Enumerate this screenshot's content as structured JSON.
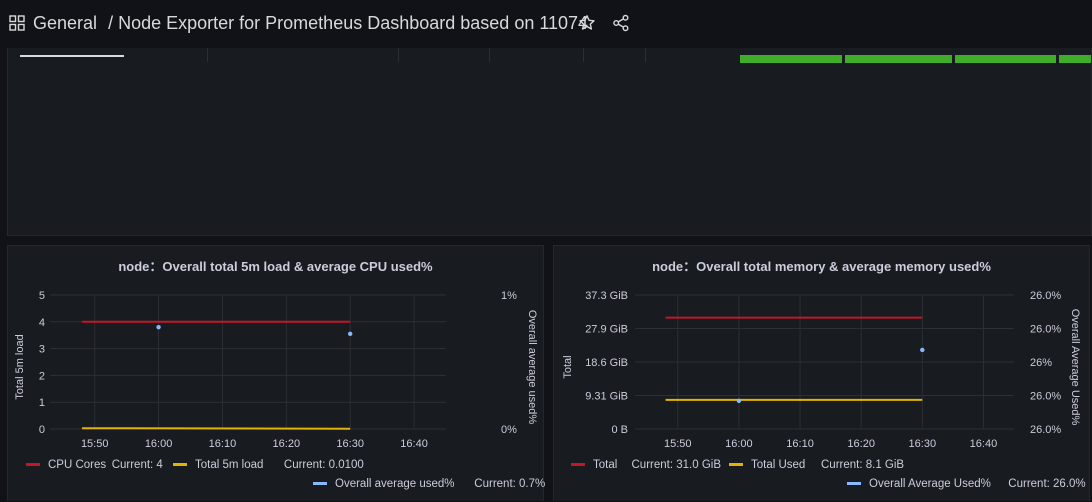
{
  "header": {
    "folder": "General",
    "separator": "/",
    "title": "Node Exporter for Prometheus Dashboard based on 11074",
    "icons": [
      "apps-grid-icon",
      "star-icon",
      "share-icon"
    ]
  },
  "colors": {
    "red": "#c4162a",
    "yellow": "#e0b400",
    "blue": "#8ab8ff",
    "green": "#3fac2a"
  },
  "panels": [
    {
      "title": "node：Overall total 5m load & average CPU used%",
      "left_axis_label": "Total 5m load",
      "right_axis_label": "Overall average used%",
      "left_ticks": [
        "5",
        "4",
        "3",
        "2",
        "1",
        "0"
      ],
      "right_ticks": [
        "1%",
        "0%"
      ],
      "x_ticks": [
        "15:50",
        "16:00",
        "16:10",
        "16:20",
        "16:30",
        "16:40"
      ],
      "legend": [
        {
          "name": "CPU Cores",
          "current_label": "Current: 4",
          "color": "#c4162a"
        },
        {
          "name": "Total 5m load",
          "current_label": "Current: 0.0100",
          "color": "#e0b400"
        },
        {
          "name": "Overall average used%",
          "current_label": "Current: 0.7%",
          "color": "#8ab8ff"
        }
      ]
    },
    {
      "title": "node：Overall total memory & average memory used%",
      "left_axis_label": "Total",
      "right_axis_label": "Overall Average Used%",
      "left_ticks": [
        "37.3 GiB",
        "27.9 GiB",
        "18.6 GiB",
        "9.31 GiB",
        "0 B"
      ],
      "right_ticks": [
        "26.0%",
        "26.0%",
        "26%",
        "26.0%",
        "26.0%"
      ],
      "x_ticks": [
        "15:50",
        "16:00",
        "16:10",
        "16:20",
        "16:30",
        "16:40"
      ],
      "legend": [
        {
          "name": "Total",
          "current_label": "Current: 31.0 GiB",
          "color": "#c4162a"
        },
        {
          "name": "Total Used",
          "current_label": "Current: 8.1 GiB",
          "color": "#e0b400"
        },
        {
          "name": "Overall Average Used%",
          "current_label": "Current: 26.0%",
          "color": "#8ab8ff"
        }
      ]
    }
  ],
  "chart_data": [
    {
      "type": "line",
      "title": "node：Overall total 5m load & average CPU used%",
      "xlabel": "",
      "ylabel": "Total 5m load",
      "y2label": "Overall average used%",
      "ylim": [
        0,
        5
      ],
      "y2lim": [
        0,
        1
      ],
      "x": [
        "15:48",
        "16:30"
      ],
      "series": [
        {
          "name": "CPU Cores",
          "axis": "left",
          "type": "line",
          "x": [
            "15:48",
            "16:30"
          ],
          "values": [
            4,
            4
          ]
        },
        {
          "name": "Total 5m load",
          "axis": "left",
          "type": "line",
          "x": [
            "15:48",
            "16:30"
          ],
          "values": [
            0.03,
            0.01
          ]
        },
        {
          "name": "Overall average used%",
          "axis": "right",
          "type": "points",
          "x": [
            "16:00",
            "16:30"
          ],
          "values": [
            0.76,
            0.71
          ]
        }
      ]
    },
    {
      "type": "line",
      "title": "node：Overall total memory & average memory used%",
      "xlabel": "",
      "ylabel": "Total",
      "y2label": "Overall Average Used%",
      "ylim": [
        0,
        37.3
      ],
      "x": [
        "15:48",
        "16:30"
      ],
      "series": [
        {
          "name": "Total",
          "axis": "left",
          "type": "line",
          "x": [
            "15:48",
            "16:30"
          ],
          "values": [
            31.0,
            31.0
          ],
          "unit": "GiB"
        },
        {
          "name": "Total Used",
          "axis": "left",
          "type": "line",
          "x": [
            "15:48",
            "16:30"
          ],
          "values": [
            8.1,
            8.1
          ],
          "unit": "GiB"
        },
        {
          "name": "Overall Average Used%",
          "axis": "right",
          "type": "points",
          "x": [
            "16:00",
            "16:30"
          ],
          "values": [
            26.0,
            26.0
          ]
        }
      ]
    }
  ]
}
